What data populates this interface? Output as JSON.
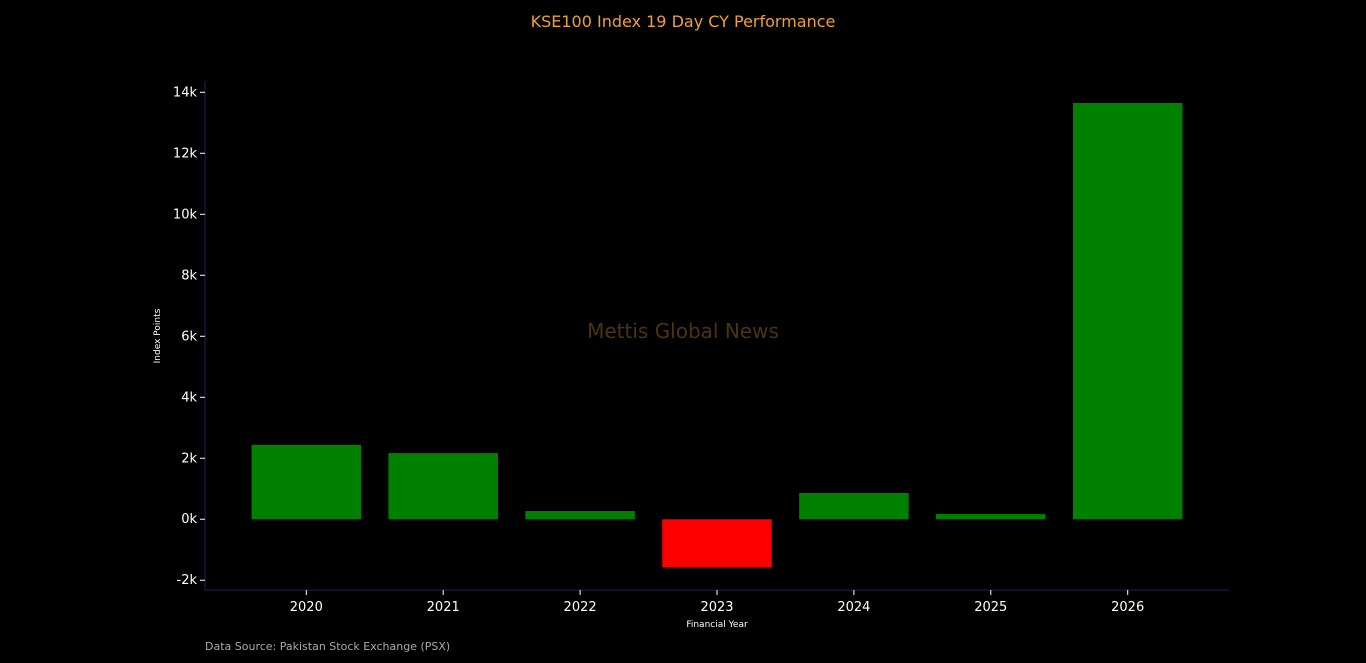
{
  "chart_data": {
    "type": "bar",
    "title": "KSE100 Index 19 Day CY Performance",
    "xlabel": "Financial Year",
    "ylabel": "Index Points",
    "categories": [
      "2020",
      "2021",
      "2022",
      "2023",
      "2024",
      "2025",
      "2026"
    ],
    "values": [
      2440,
      2170,
      270,
      -1570,
      860,
      170,
      13650
    ],
    "ylim": [
      -2320,
      14370
    ],
    "yticks": [
      -2000,
      0,
      2000,
      4000,
      6000,
      8000,
      10000,
      12000,
      14000
    ],
    "ytick_labels": [
      "-2k",
      "0k",
      "2k",
      "4k",
      "6k",
      "8k",
      "10k",
      "12k",
      "14k"
    ],
    "grid": false,
    "colors": {
      "positive": "#008000",
      "negative": "#ff0000",
      "title": "#f0a030",
      "axis": "#1f1f6b",
      "watermark": "#4a3410"
    },
    "watermark": "Mettis Global News",
    "source": "Data Source: Pakistan Stock Exchange (PSX)"
  }
}
